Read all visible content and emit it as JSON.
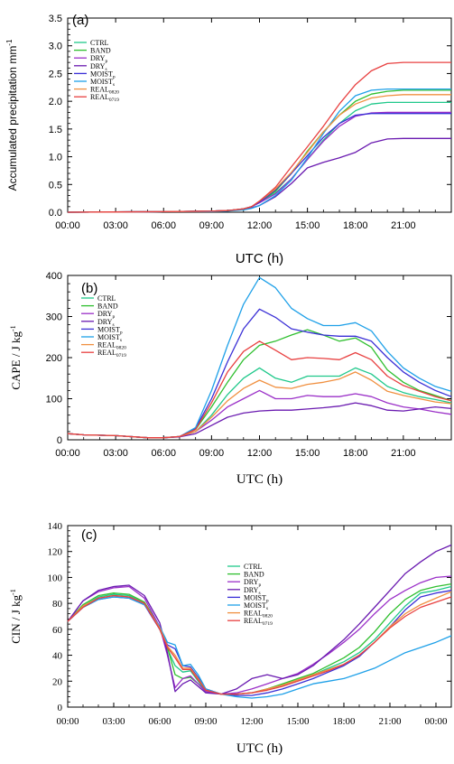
{
  "colors": {
    "CTRL": "#1fc88a",
    "BAND": "#2fbf2f",
    "DRYp": "#9b30c8",
    "DRYs": "#6a1ab0",
    "MOISTp": "#3a2fd6",
    "MOISTs": "#1ea0e8",
    "REAL0820": "#f09040",
    "REAL0719": "#e84040"
  },
  "chart_data": [
    {
      "type": "line",
      "panel": "(a)",
      "ylabel": "Accumulated precipitation mm",
      "ylabel_sup": "-1",
      "xlabel": "UTC (h)",
      "xlim": [
        0,
        24
      ],
      "ylim": [
        0,
        3.5
      ],
      "x_ticks": [
        "00:00",
        "03:00",
        "06:00",
        "09:00",
        "12:00",
        "15:00",
        "18:00",
        "21:00"
      ],
      "y_ticks": [
        "0.0",
        "0.5",
        "1.0",
        "1.5",
        "2.0",
        "2.5",
        "3.0",
        "3.5"
      ],
      "x": [
        0,
        6,
        9,
        10,
        11,
        11.5,
        12,
        13,
        14,
        15,
        16,
        17,
        18,
        19,
        20,
        21,
        22,
        24
      ],
      "series": [
        {
          "key": "CTRL",
          "name": "CTRL",
          "sub": "",
          "values": [
            0,
            0.01,
            0.02,
            0.03,
            0.06,
            0.1,
            0.18,
            0.35,
            0.6,
            0.95,
            1.3,
            1.6,
            1.83,
            1.95,
            1.98,
            1.98,
            1.98,
            1.98
          ]
        },
        {
          "key": "BAND",
          "name": "BAND",
          "sub": "",
          "values": [
            0,
            0.01,
            0.02,
            0.03,
            0.06,
            0.1,
            0.18,
            0.38,
            0.7,
            1.1,
            1.45,
            1.75,
            2.0,
            2.13,
            2.18,
            2.2,
            2.2,
            2.2
          ]
        },
        {
          "key": "DRYp",
          "name": "DRY",
          "sub": "p",
          "values": [
            0,
            0.01,
            0.02,
            0.03,
            0.06,
            0.1,
            0.17,
            0.33,
            0.6,
            0.95,
            1.28,
            1.55,
            1.73,
            1.79,
            1.8,
            1.8,
            1.8,
            1.8
          ]
        },
        {
          "key": "DRYs",
          "name": "DRY",
          "sub": "s",
          "values": [
            0,
            0.01,
            0.02,
            0.03,
            0.05,
            0.08,
            0.12,
            0.28,
            0.52,
            0.8,
            0.9,
            0.98,
            1.08,
            1.25,
            1.32,
            1.33,
            1.33,
            1.33
          ]
        },
        {
          "key": "MOISTp",
          "name": "MOIST",
          "sub": "p",
          "values": [
            0,
            0.01,
            0.02,
            0.03,
            0.06,
            0.1,
            0.18,
            0.4,
            0.7,
            1.02,
            1.35,
            1.6,
            1.75,
            1.78,
            1.78,
            1.78,
            1.78,
            1.78
          ]
        },
        {
          "key": "MOISTs",
          "name": "MOIST",
          "sub": "s",
          "values": [
            0,
            0.01,
            0.01,
            0.02,
            0.04,
            0.07,
            0.12,
            0.3,
            0.58,
            0.98,
            1.42,
            1.82,
            2.1,
            2.2,
            2.22,
            2.22,
            2.22,
            2.22
          ]
        },
        {
          "key": "REAL0820",
          "name": "REAL",
          "sub": "0820",
          "values": [
            0,
            0.01,
            0.02,
            0.03,
            0.06,
            0.1,
            0.2,
            0.42,
            0.72,
            1.08,
            1.45,
            1.75,
            1.95,
            2.06,
            2.1,
            2.12,
            2.12,
            2.12
          ]
        },
        {
          "key": "REAL0719",
          "name": "REAL",
          "sub": "0719",
          "values": [
            0,
            0.01,
            0.02,
            0.03,
            0.06,
            0.1,
            0.2,
            0.45,
            0.82,
            1.18,
            1.55,
            1.95,
            2.3,
            2.55,
            2.68,
            2.7,
            2.7,
            2.7
          ]
        }
      ],
      "legend_placement": "top-left"
    },
    {
      "type": "line",
      "panel": "(b)",
      "ylabel": "CAPE / J kg",
      "ylabel_sup": "-1",
      "xlabel": "UTC (h)",
      "xlim": [
        0,
        24
      ],
      "ylim": [
        0,
        400
      ],
      "x_ticks": [
        "00:00",
        "03:00",
        "06:00",
        "09:00",
        "12:00",
        "15:00",
        "18:00",
        "21:00"
      ],
      "y_ticks": [
        "0",
        "100",
        "200",
        "300",
        "400"
      ],
      "x": [
        0,
        1,
        3,
        5,
        6,
        7,
        8,
        9,
        10,
        11,
        12,
        13,
        14,
        15,
        16,
        17,
        18,
        19,
        20,
        21,
        22,
        23,
        24
      ],
      "series": [
        {
          "key": "CTRL",
          "name": "CTRL",
          "sub": "",
          "values": [
            15,
            12,
            10,
            5,
            5,
            8,
            20,
            60,
            110,
            150,
            175,
            150,
            140,
            155,
            155,
            155,
            175,
            160,
            130,
            115,
            105,
            98,
            90
          ]
        },
        {
          "key": "BAND",
          "name": "BAND",
          "sub": "",
          "values": [
            15,
            12,
            10,
            5,
            5,
            8,
            25,
            80,
            140,
            195,
            230,
            240,
            255,
            268,
            255,
            240,
            248,
            225,
            170,
            140,
            120,
            108,
            95
          ]
        },
        {
          "key": "DRYp",
          "name": "DRY",
          "sub": "p",
          "values": [
            15,
            12,
            10,
            5,
            5,
            8,
            20,
            48,
            80,
            100,
            120,
            100,
            100,
            108,
            105,
            105,
            112,
            105,
            90,
            80,
            75,
            68,
            62
          ]
        },
        {
          "key": "DRYs",
          "name": "DRY",
          "sub": "s",
          "values": [
            15,
            12,
            10,
            5,
            5,
            7,
            15,
            35,
            55,
            65,
            70,
            72,
            72,
            75,
            78,
            82,
            90,
            83,
            72,
            70,
            75,
            80,
            76
          ]
        },
        {
          "key": "MOISTp",
          "name": "MOIST",
          "sub": "p",
          "values": [
            15,
            12,
            10,
            5,
            5,
            8,
            28,
            100,
            190,
            270,
            318,
            298,
            270,
            262,
            255,
            252,
            252,
            240,
            200,
            165,
            140,
            120,
            105
          ]
        },
        {
          "key": "MOISTs",
          "name": "MOIST",
          "sub": "s",
          "values": [
            15,
            12,
            10,
            5,
            5,
            8,
            30,
            120,
            230,
            330,
            395,
            370,
            320,
            295,
            278,
            278,
            285,
            265,
            215,
            175,
            150,
            130,
            118
          ]
        },
        {
          "key": "REAL0820",
          "name": "REAL",
          "sub": "0820",
          "values": [
            15,
            12,
            10,
            5,
            5,
            8,
            20,
            55,
            95,
            125,
            145,
            128,
            125,
            135,
            140,
            148,
            165,
            145,
            118,
            108,
            100,
            92,
            88
          ]
        },
        {
          "key": "REAL0719",
          "name": "REAL",
          "sub": "0719",
          "values": [
            15,
            12,
            10,
            5,
            5,
            8,
            25,
            90,
            165,
            215,
            240,
            218,
            195,
            200,
            198,
            195,
            212,
            195,
            155,
            132,
            118,
            105,
            95
          ]
        }
      ],
      "legend_placement": "top-left"
    },
    {
      "type": "line",
      "panel": "(c)",
      "ylabel": "CIN / J kg",
      "ylabel_sup": "-1",
      "xlabel": "UTC (h)",
      "xlim": [
        0,
        25
      ],
      "ylim": [
        0,
        140
      ],
      "x_ticks": [
        "00:00",
        "03:00",
        "06:00",
        "09:00",
        "12:00",
        "15:00",
        "18:00",
        "21:00",
        "00:00"
      ],
      "y_ticks": [
        "0",
        "20",
        "40",
        "60",
        "80",
        "100",
        "120",
        "140"
      ],
      "x": [
        0,
        1,
        2,
        3,
        4,
        5,
        6,
        6.5,
        7,
        7.5,
        8,
        8.5,
        9,
        10,
        11,
        12,
        13,
        14,
        15,
        16,
        17,
        18,
        19,
        20,
        21,
        22,
        23,
        24,
        25
      ],
      "series": [
        {
          "key": "CTRL",
          "name": "CTRL",
          "sub": "",
          "values": [
            66,
            78,
            85,
            87,
            86,
            80,
            60,
            45,
            32,
            27,
            28,
            20,
            12,
            10,
            10,
            11,
            14,
            17,
            21,
            25,
            30,
            35,
            42,
            52,
            65,
            78,
            88,
            90,
            93
          ]
        },
        {
          "key": "BAND",
          "name": "BAND",
          "sub": "",
          "values": [
            66,
            79,
            86,
            88,
            87,
            81,
            62,
            46,
            25,
            22,
            23,
            18,
            12,
            10,
            10,
            11,
            14,
            18,
            22,
            26,
            32,
            38,
            46,
            58,
            72,
            83,
            90,
            93,
            95
          ]
        },
        {
          "key": "DRYp",
          "name": "DRY",
          "sub": "p",
          "values": [
            66,
            82,
            89,
            92,
            93,
            84,
            62,
            40,
            15,
            22,
            24,
            18,
            12,
            10,
            11,
            14,
            18,
            22,
            26,
            33,
            41,
            50,
            60,
            72,
            83,
            90,
            96,
            100,
            101
          ]
        },
        {
          "key": "DRYs",
          "name": "DRY",
          "sub": "s",
          "values": [
            66,
            82,
            90,
            93,
            94,
            86,
            65,
            42,
            12,
            18,
            21,
            16,
            11,
            10,
            14,
            22,
            25,
            22,
            25,
            32,
            42,
            52,
            64,
            77,
            90,
            103,
            112,
            120,
            125
          ]
        },
        {
          "key": "MOISTp",
          "name": "MOIST",
          "sub": "p",
          "values": [
            66,
            77,
            83,
            85,
            84,
            79,
            60,
            48,
            45,
            32,
            31,
            23,
            14,
            10,
            9,
            9,
            11,
            14,
            18,
            22,
            27,
            32,
            39,
            50,
            62,
            75,
            85,
            88,
            90
          ]
        },
        {
          "key": "MOISTs",
          "name": "MOIST",
          "sub": "s",
          "values": [
            66,
            77,
            83,
            85,
            84,
            79,
            62,
            50,
            48,
            32,
            33,
            25,
            14,
            10,
            8,
            7,
            8,
            10,
            14,
            18,
            20,
            22,
            26,
            30,
            36,
            42,
            46,
            50,
            55
          ]
        },
        {
          "key": "REAL0820",
          "name": "REAL",
          "sub": "0820",
          "values": [
            66,
            78,
            84,
            86,
            85,
            80,
            61,
            47,
            40,
            30,
            30,
            22,
            13,
            10,
            10,
            11,
            14,
            17,
            21,
            25,
            29,
            33,
            40,
            50,
            62,
            72,
            79,
            84,
            89
          ]
        },
        {
          "key": "REAL0719",
          "name": "REAL",
          "sub": "0719",
          "values": [
            66,
            77,
            84,
            86,
            85,
            80,
            60,
            46,
            38,
            29,
            29,
            21,
            13,
            10,
            10,
            11,
            13,
            16,
            20,
            24,
            28,
            33,
            40,
            50,
            61,
            70,
            77,
            81,
            85
          ]
        }
      ],
      "legend_placement": "top-center"
    }
  ]
}
